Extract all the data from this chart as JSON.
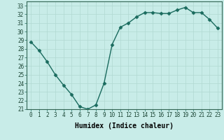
{
  "x": [
    0,
    1,
    2,
    3,
    4,
    5,
    6,
    7,
    8,
    9,
    10,
    11,
    12,
    13,
    14,
    15,
    16,
    17,
    18,
    19,
    20,
    21,
    22,
    23
  ],
  "y": [
    28.8,
    27.8,
    26.5,
    25.0,
    23.8,
    22.7,
    21.3,
    21.0,
    21.5,
    24.0,
    28.5,
    30.5,
    31.0,
    31.7,
    32.2,
    32.2,
    32.1,
    32.1,
    32.5,
    32.8,
    32.2,
    32.2,
    31.4,
    30.4
  ],
  "line_color": "#1a6b5e",
  "marker": "D",
  "marker_size": 2.5,
  "bg_color": "#c8ece8",
  "grid_color": "#b0d8d2",
  "xlabel": "Humidex (Indice chaleur)",
  "ylim": [
    21,
    33.5
  ],
  "xlim": [
    -0.5,
    23.5
  ],
  "yticks": [
    21,
    22,
    23,
    24,
    25,
    26,
    27,
    28,
    29,
    30,
    31,
    32,
    33
  ],
  "xticks": [
    0,
    1,
    2,
    3,
    4,
    5,
    6,
    7,
    8,
    9,
    10,
    11,
    12,
    13,
    14,
    15,
    16,
    17,
    18,
    19,
    20,
    21,
    22,
    23
  ],
  "tick_fontsize": 5.5,
  "xlabel_fontsize": 7,
  "linewidth": 1.0
}
